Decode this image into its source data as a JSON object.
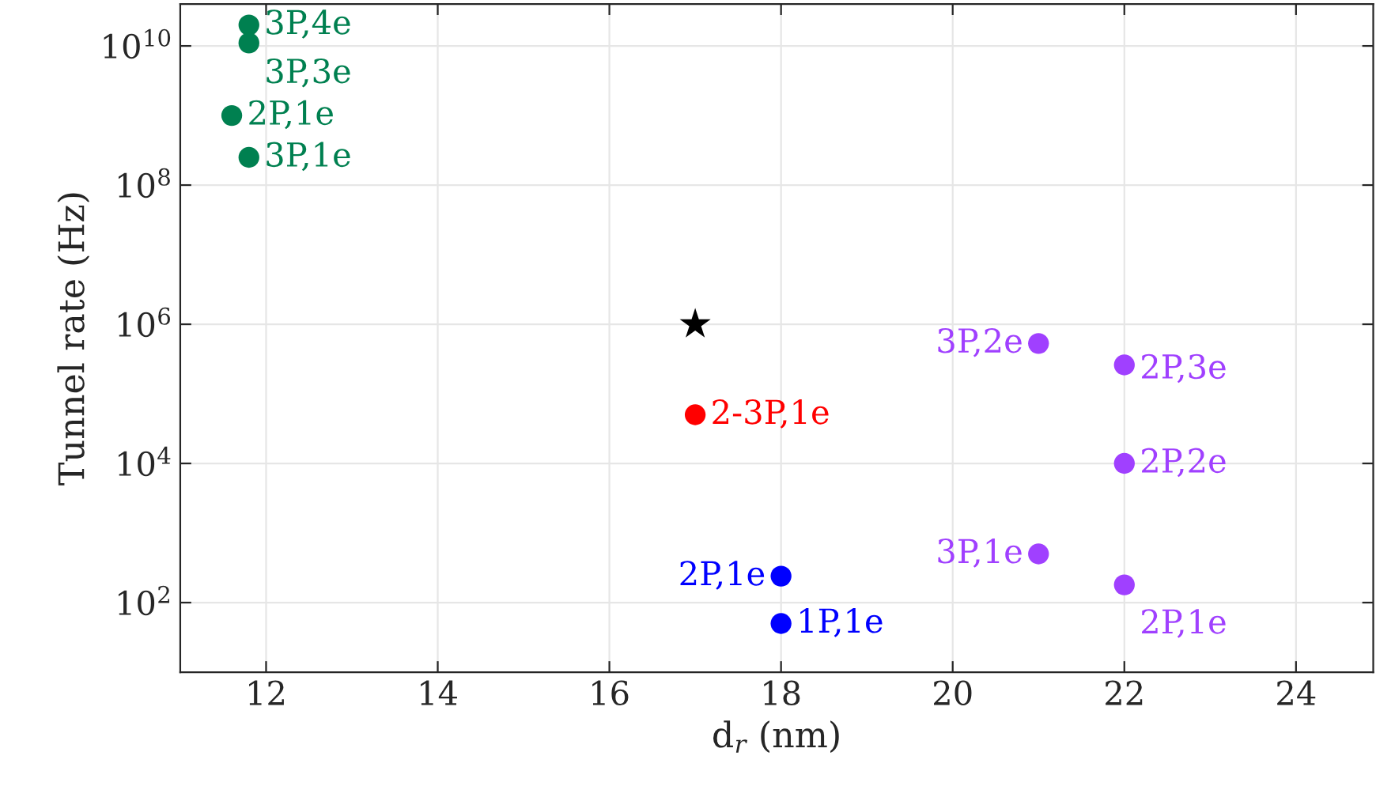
{
  "chart_data": {
    "type": "scatter",
    "xlabel": "d$_{r}$ (nm)",
    "ylabel": "Tunnel rate (Hz)",
    "xlim": [
      11,
      24.9
    ],
    "xticks": [
      12,
      14,
      16,
      18,
      20,
      22,
      24
    ],
    "ylim": [
      10,
      40000000000
    ],
    "yticks": [
      {
        "value": 100,
        "label": "10$^{2}$"
      },
      {
        "value": 10000,
        "label": "10$^{4}$"
      },
      {
        "value": 1000000,
        "label": "10$^{6}$"
      },
      {
        "value": 100000000,
        "label": "10$^{8}$"
      },
      {
        "value": 10000000000,
        "label": "10$^{10}$"
      }
    ],
    "log": "y",
    "grid": true,
    "marker": "circle",
    "series": [
      {
        "color": "#008050",
        "x": [
          11.8,
          11.8,
          11.6,
          11.8
        ],
        "values": [
          20000000000,
          11000000000,
          1000000000,
          250000000
        ]
      },
      {
        "color": "#ff0000",
        "x": [
          17
        ],
        "values": [
          50000
        ]
      },
      {
        "color": "#0000ff",
        "x": [
          18,
          18
        ],
        "values": [
          240,
          50
        ]
      },
      {
        "color": "#a040ff",
        "x": [
          21,
          22,
          22,
          21,
          22
        ],
        "values": [
          530000,
          260000,
          10000,
          500,
          180
        ]
      },
      {
        "color": "#000000",
        "x": [
          17
        ],
        "values": [
          1000000
        ],
        "marker": "star"
      }
    ],
    "annotations": [
      {
        "text": "3P,4e",
        "x": 11.8,
        "y": 20000000000
      },
      {
        "text": "3P,3e",
        "x": 11.8,
        "y": 11000000000
      },
      {
        "text": "2P,1e",
        "x": 11.6,
        "y": 1000000000
      },
      {
        "text": "3P,1e",
        "x": 11.8,
        "y": 250000000
      },
      {
        "text": "2-3P,1e",
        "x": 17,
        "y": 50000
      },
      {
        "text": "2P,1e",
        "x": 18,
        "y": 240
      },
      {
        "text": "1P,1e",
        "x": 18,
        "y": 50
      },
      {
        "text": "3P,2e",
        "x": 21,
        "y": 530000
      },
      {
        "text": "2P,3e",
        "x": 22,
        "y": 260000
      },
      {
        "text": "2P,2e",
        "x": 22,
        "y": 10000
      },
      {
        "text": "3P,1e",
        "x": 21,
        "y": 500
      },
      {
        "text": "2P,1e",
        "x": 22,
        "y": 180
      }
    ]
  }
}
